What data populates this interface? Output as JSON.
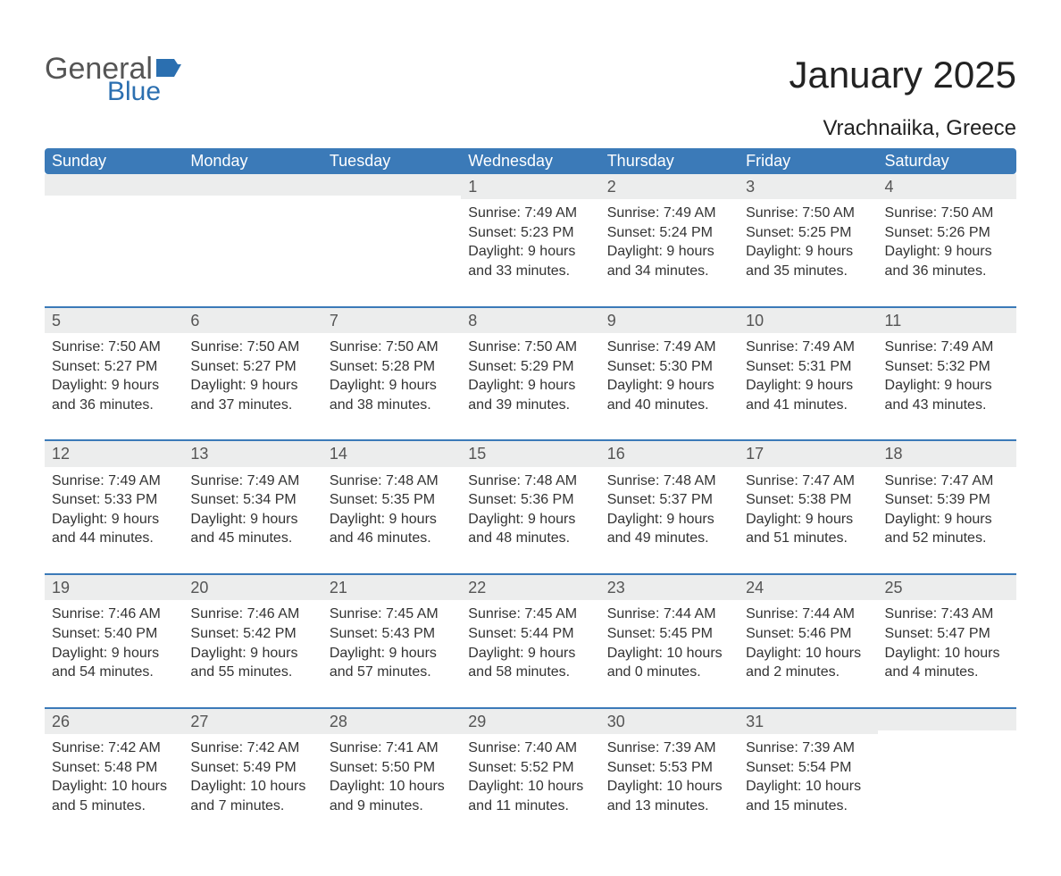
{
  "brand": {
    "word1": "General",
    "word2": "Blue",
    "word1_color": "#555555",
    "word2_color": "#2b6fb0",
    "flag_color": "#2b6fb0"
  },
  "header": {
    "title": "January 2025",
    "location": "Vrachnaiika, Greece",
    "title_fontsize": 42,
    "location_fontsize": 24
  },
  "calendar": {
    "header_bg": "#3b7ab8",
    "header_text_color": "#ffffff",
    "daynum_bg": "#eceded",
    "row_border_color": "#3b7ab8",
    "text_color": "#333333",
    "columns": [
      "Sunday",
      "Monday",
      "Tuesday",
      "Wednesday",
      "Thursday",
      "Friday",
      "Saturday"
    ],
    "weeks": [
      [
        {
          "day": "",
          "sunrise": "",
          "sunset": "",
          "daylight": ""
        },
        {
          "day": "",
          "sunrise": "",
          "sunset": "",
          "daylight": ""
        },
        {
          "day": "",
          "sunrise": "",
          "sunset": "",
          "daylight": ""
        },
        {
          "day": "1",
          "sunrise": "Sunrise: 7:49 AM",
          "sunset": "Sunset: 5:23 PM",
          "daylight": "Daylight: 9 hours and 33 minutes."
        },
        {
          "day": "2",
          "sunrise": "Sunrise: 7:49 AM",
          "sunset": "Sunset: 5:24 PM",
          "daylight": "Daylight: 9 hours and 34 minutes."
        },
        {
          "day": "3",
          "sunrise": "Sunrise: 7:50 AM",
          "sunset": "Sunset: 5:25 PM",
          "daylight": "Daylight: 9 hours and 35 minutes."
        },
        {
          "day": "4",
          "sunrise": "Sunrise: 7:50 AM",
          "sunset": "Sunset: 5:26 PM",
          "daylight": "Daylight: 9 hours and 36 minutes."
        }
      ],
      [
        {
          "day": "5",
          "sunrise": "Sunrise: 7:50 AM",
          "sunset": "Sunset: 5:27 PM",
          "daylight": "Daylight: 9 hours and 36 minutes."
        },
        {
          "day": "6",
          "sunrise": "Sunrise: 7:50 AM",
          "sunset": "Sunset: 5:27 PM",
          "daylight": "Daylight: 9 hours and 37 minutes."
        },
        {
          "day": "7",
          "sunrise": "Sunrise: 7:50 AM",
          "sunset": "Sunset: 5:28 PM",
          "daylight": "Daylight: 9 hours and 38 minutes."
        },
        {
          "day": "8",
          "sunrise": "Sunrise: 7:50 AM",
          "sunset": "Sunset: 5:29 PM",
          "daylight": "Daylight: 9 hours and 39 minutes."
        },
        {
          "day": "9",
          "sunrise": "Sunrise: 7:49 AM",
          "sunset": "Sunset: 5:30 PM",
          "daylight": "Daylight: 9 hours and 40 minutes."
        },
        {
          "day": "10",
          "sunrise": "Sunrise: 7:49 AM",
          "sunset": "Sunset: 5:31 PM",
          "daylight": "Daylight: 9 hours and 41 minutes."
        },
        {
          "day": "11",
          "sunrise": "Sunrise: 7:49 AM",
          "sunset": "Sunset: 5:32 PM",
          "daylight": "Daylight: 9 hours and 43 minutes."
        }
      ],
      [
        {
          "day": "12",
          "sunrise": "Sunrise: 7:49 AM",
          "sunset": "Sunset: 5:33 PM",
          "daylight": "Daylight: 9 hours and 44 minutes."
        },
        {
          "day": "13",
          "sunrise": "Sunrise: 7:49 AM",
          "sunset": "Sunset: 5:34 PM",
          "daylight": "Daylight: 9 hours and 45 minutes."
        },
        {
          "day": "14",
          "sunrise": "Sunrise: 7:48 AM",
          "sunset": "Sunset: 5:35 PM",
          "daylight": "Daylight: 9 hours and 46 minutes."
        },
        {
          "day": "15",
          "sunrise": "Sunrise: 7:48 AM",
          "sunset": "Sunset: 5:36 PM",
          "daylight": "Daylight: 9 hours and 48 minutes."
        },
        {
          "day": "16",
          "sunrise": "Sunrise: 7:48 AM",
          "sunset": "Sunset: 5:37 PM",
          "daylight": "Daylight: 9 hours and 49 minutes."
        },
        {
          "day": "17",
          "sunrise": "Sunrise: 7:47 AM",
          "sunset": "Sunset: 5:38 PM",
          "daylight": "Daylight: 9 hours and 51 minutes."
        },
        {
          "day": "18",
          "sunrise": "Sunrise: 7:47 AM",
          "sunset": "Sunset: 5:39 PM",
          "daylight": "Daylight: 9 hours and 52 minutes."
        }
      ],
      [
        {
          "day": "19",
          "sunrise": "Sunrise: 7:46 AM",
          "sunset": "Sunset: 5:40 PM",
          "daylight": "Daylight: 9 hours and 54 minutes."
        },
        {
          "day": "20",
          "sunrise": "Sunrise: 7:46 AM",
          "sunset": "Sunset: 5:42 PM",
          "daylight": "Daylight: 9 hours and 55 minutes."
        },
        {
          "day": "21",
          "sunrise": "Sunrise: 7:45 AM",
          "sunset": "Sunset: 5:43 PM",
          "daylight": "Daylight: 9 hours and 57 minutes."
        },
        {
          "day": "22",
          "sunrise": "Sunrise: 7:45 AM",
          "sunset": "Sunset: 5:44 PM",
          "daylight": "Daylight: 9 hours and 58 minutes."
        },
        {
          "day": "23",
          "sunrise": "Sunrise: 7:44 AM",
          "sunset": "Sunset: 5:45 PM",
          "daylight": "Daylight: 10 hours and 0 minutes."
        },
        {
          "day": "24",
          "sunrise": "Sunrise: 7:44 AM",
          "sunset": "Sunset: 5:46 PM",
          "daylight": "Daylight: 10 hours and 2 minutes."
        },
        {
          "day": "25",
          "sunrise": "Sunrise: 7:43 AM",
          "sunset": "Sunset: 5:47 PM",
          "daylight": "Daylight: 10 hours and 4 minutes."
        }
      ],
      [
        {
          "day": "26",
          "sunrise": "Sunrise: 7:42 AM",
          "sunset": "Sunset: 5:48 PM",
          "daylight": "Daylight: 10 hours and 5 minutes."
        },
        {
          "day": "27",
          "sunrise": "Sunrise: 7:42 AM",
          "sunset": "Sunset: 5:49 PM",
          "daylight": "Daylight: 10 hours and 7 minutes."
        },
        {
          "day": "28",
          "sunrise": "Sunrise: 7:41 AM",
          "sunset": "Sunset: 5:50 PM",
          "daylight": "Daylight: 10 hours and 9 minutes."
        },
        {
          "day": "29",
          "sunrise": "Sunrise: 7:40 AM",
          "sunset": "Sunset: 5:52 PM",
          "daylight": "Daylight: 10 hours and 11 minutes."
        },
        {
          "day": "30",
          "sunrise": "Sunrise: 7:39 AM",
          "sunset": "Sunset: 5:53 PM",
          "daylight": "Daylight: 10 hours and 13 minutes."
        },
        {
          "day": "31",
          "sunrise": "Sunrise: 7:39 AM",
          "sunset": "Sunset: 5:54 PM",
          "daylight": "Daylight: 10 hours and 15 minutes."
        },
        {
          "day": "",
          "sunrise": "",
          "sunset": "",
          "daylight": ""
        }
      ]
    ]
  }
}
